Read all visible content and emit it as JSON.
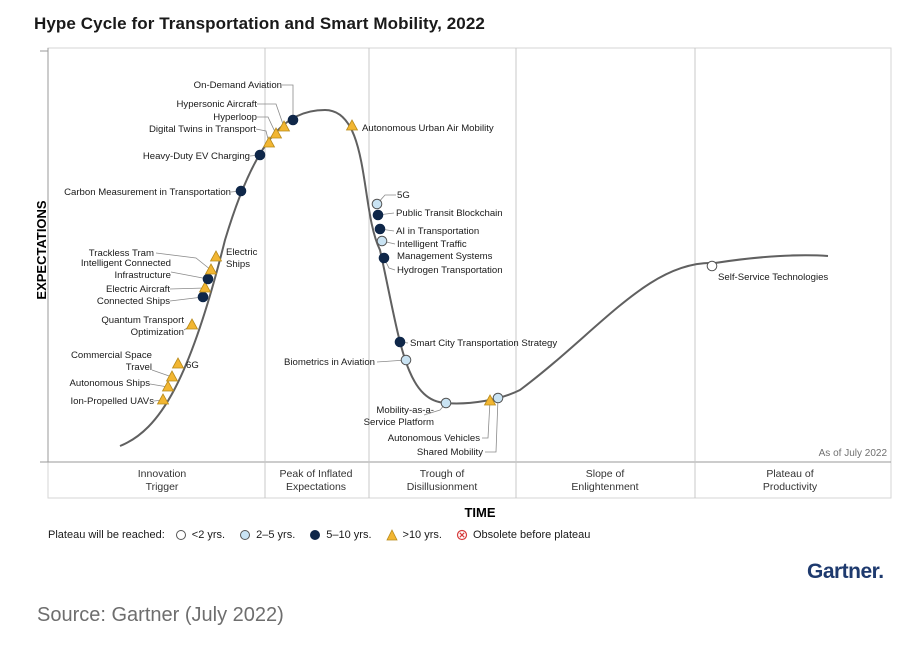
{
  "title": "Hype Cycle for Transportation and Smart Mobility, 2022",
  "chart_data": {
    "type": "scatter",
    "title": "Hype Cycle for Transportation and Smart Mobility, 2022",
    "xlabel": "TIME",
    "ylabel": "EXPECTATIONS",
    "note": "As of July 2022",
    "phases": [
      "Innovation\nTrigger",
      "Peak of Inflated\nExpectations",
      "Trough of\nDisillusionment",
      "Slope of\nEnlightenment",
      "Plateau of\nProductivity"
    ],
    "points": [
      {
        "label": "Ion-Propelled UAVs",
        "class": "gt10"
      },
      {
        "label": "Autonomous Ships",
        "class": "gt10"
      },
      {
        "label": "Commercial Space\nTravel",
        "class": "gt10"
      },
      {
        "label": "6G",
        "class": "gt10"
      },
      {
        "label": "Quantum Transport\nOptimization",
        "class": "gt10"
      },
      {
        "label": "Connected Ships",
        "class": "5to10"
      },
      {
        "label": "Electric Aircraft",
        "class": "gt10"
      },
      {
        "label": "Intelligent Connected\nInfrastructure",
        "class": "5to10"
      },
      {
        "label": "Trackless Tram",
        "class": "gt10"
      },
      {
        "label": "Electric\nShips",
        "class": "gt10"
      },
      {
        "label": "Carbon Measurement in Transportation",
        "class": "5to10"
      },
      {
        "label": "Heavy-Duty EV Charging",
        "class": "5to10"
      },
      {
        "label": "Digital Twins in Transport",
        "class": "gt10"
      },
      {
        "label": "Hyperloop",
        "class": "gt10"
      },
      {
        "label": "Hypersonic Aircraft",
        "class": "gt10"
      },
      {
        "label": "On-Demand Aviation",
        "class": "5to10"
      },
      {
        "label": "Autonomous Urban Air Mobility",
        "class": "gt10"
      },
      {
        "label": "5G",
        "class": "2to5"
      },
      {
        "label": "Public Transit Blockchain",
        "class": "5to10"
      },
      {
        "label": "AI in Transportation",
        "class": "5to10"
      },
      {
        "label": "Intelligent Traffic\nManagement Systems",
        "class": "2to5"
      },
      {
        "label": "Hydrogen Transportation",
        "class": "5to10"
      },
      {
        "label": "Smart City Transportation Strategy",
        "class": "5to10"
      },
      {
        "label": "Biometrics in Aviation",
        "class": "2to5"
      },
      {
        "label": "Mobility-as-a-\nService Platform",
        "class": "2to5"
      },
      {
        "label": "Autonomous Vehicles",
        "class": "gt10"
      },
      {
        "label": "Shared Mobility",
        "class": "2to5"
      },
      {
        "label": "Self-Service Technologies",
        "class": "lt2"
      }
    ]
  },
  "legend": {
    "lead": "Plateau will be reached:",
    "items": [
      {
        "key": "lt2",
        "label": "<2 yrs."
      },
      {
        "key": "2to5",
        "label": "2–5 yrs."
      },
      {
        "key": "5to10",
        "label": "5–10 yrs."
      },
      {
        "key": "gt10",
        "label": ">10 yrs."
      },
      {
        "key": "obsolete",
        "label": "Obsolete before plateau"
      }
    ]
  },
  "colors": {
    "lt2": "#ffffff",
    "2to5": "#c9e3f3",
    "5to10": "#0f2749",
    "gt10": "#f2b632",
    "obsolete": "#d63b3b",
    "curve": "#606060"
  },
  "brand": "Gartner.",
  "source": "Source: Gartner (July 2022)"
}
